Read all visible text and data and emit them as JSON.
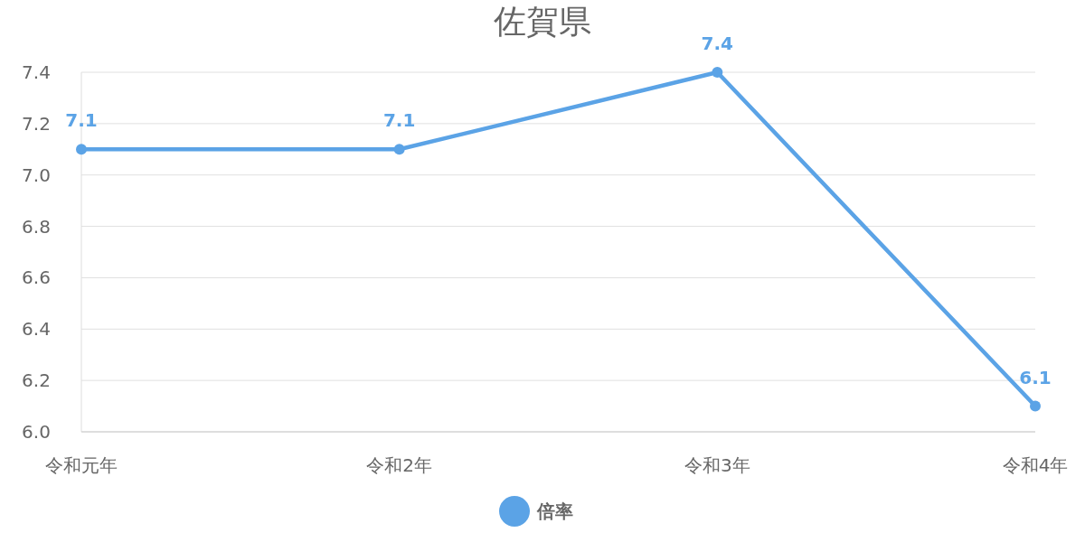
{
  "chart_data": {
    "type": "line",
    "title": "佐賀県",
    "categories": [
      "令和元年",
      "令和2年",
      "令和3年",
      "令和4年"
    ],
    "series": [
      {
        "name": "倍率",
        "color": "#5ba3e6",
        "values": [
          7.1,
          7.1,
          7.4,
          6.1
        ]
      }
    ],
    "ylim": [
      6.0,
      7.4
    ],
    "yticks": [
      {
        "value": 6.0,
        "label": "6.0"
      },
      {
        "value": 6.2,
        "label": "6.2"
      },
      {
        "value": 6.4,
        "label": "6.4"
      },
      {
        "value": 6.6,
        "label": "6.6"
      },
      {
        "value": 6.8,
        "label": "6.8"
      },
      {
        "value": 7.0,
        "label": "7.0"
      },
      {
        "value": 7.2,
        "label": "7.2"
      },
      {
        "value": 7.4,
        "label": "7.4"
      }
    ],
    "grid": "y",
    "legend": "bottom",
    "marker": "circle",
    "line_style": "solid",
    "data_labels": true
  }
}
